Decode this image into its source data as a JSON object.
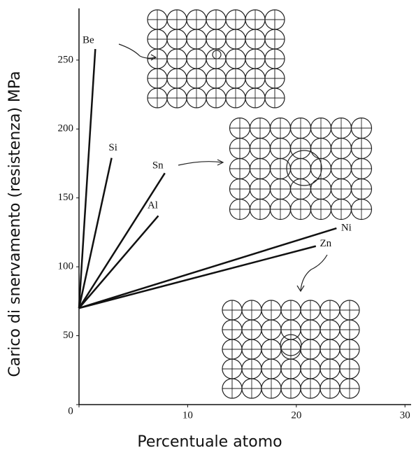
{
  "chart_data": {
    "type": "line",
    "xlabel": "Percentuale atomo",
    "ylabel": "Carico di snervamento (resistenza) MPa",
    "xlim": [
      0,
      30.5
    ],
    "ylim": [
      0,
      287
    ],
    "xticks": [
      0,
      10,
      20,
      30
    ],
    "yticks": [
      0,
      50,
      100,
      150,
      200,
      250
    ],
    "series": [
      {
        "name": "Be",
        "color": "#111111",
        "x": [
          0,
          1.5
        ],
        "values": [
          70,
          258
        ]
      },
      {
        "name": "Si",
        "color": "#111111",
        "x": [
          0,
          3.0
        ],
        "values": [
          70,
          179
        ]
      },
      {
        "name": "Sn",
        "color": "#111111",
        "x": [
          0,
          7.9
        ],
        "values": [
          70,
          168
        ]
      },
      {
        "name": "Al",
        "color": "#111111",
        "x": [
          0,
          7.3
        ],
        "values": [
          70,
          137
        ]
      },
      {
        "name": "Ni",
        "color": "#111111",
        "x": [
          0,
          23.7
        ],
        "values": [
          70,
          128
        ]
      },
      {
        "name": "Zn",
        "color": "#111111",
        "x": [
          0,
          21.8
        ],
        "values": [
          70,
          115
        ]
      }
    ]
  }
}
